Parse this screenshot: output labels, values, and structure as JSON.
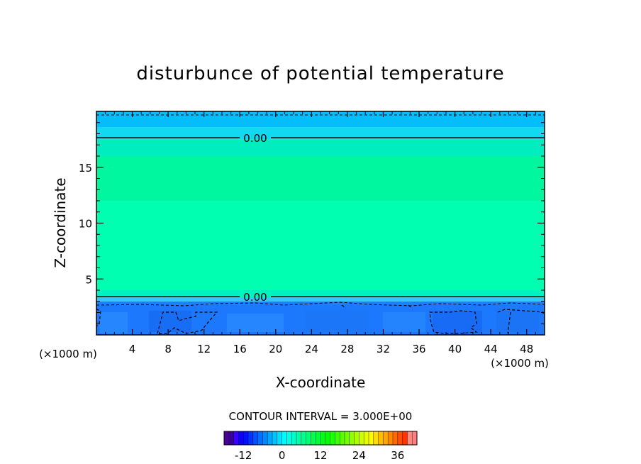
{
  "chart_data": {
    "type": "heatmap",
    "title": "disturbunce of potential temperature",
    "xlabel": "X-coordinate",
    "ylabel": "Z-coordinate",
    "x_unit": "(×1000 m)",
    "x_unit_right": "(×1000 m)",
    "xlim": [
      0,
      50
    ],
    "ylim": [
      0,
      20
    ],
    "x_ticks": [
      "4",
      "8",
      "12",
      "16",
      "20",
      "24",
      "28",
      "32",
      "36",
      "40",
      "44",
      "48"
    ],
    "y_ticks": [
      "5",
      "10",
      "15"
    ],
    "contour_labels": [
      {
        "text": "0.00",
        "x": 17.5,
        "z": 17.5
      },
      {
        "text": "0.00",
        "x": 17.5,
        "z": 3.5
      }
    ],
    "contour_interval_text": "CONTOUR INTERVAL = 3.000E+00",
    "colorbar": {
      "min": -18,
      "max": 42,
      "tick_labels": [
        "-12",
        "0",
        "12",
        "24",
        "36"
      ],
      "tick_values": [
        -12,
        0,
        12,
        24,
        36
      ]
    },
    "bands": [
      {
        "z0": 0.0,
        "z1": 3.0,
        "value": -4,
        "color": "#1e7fff"
      },
      {
        "z0": 3.0,
        "z1": 3.3,
        "value": -1,
        "color": "#2fc8ff"
      },
      {
        "z0": 3.3,
        "z1": 4.0,
        "value": 1,
        "color": "#00f2c0"
      },
      {
        "z0": 4.0,
        "z1": 12.0,
        "value": 2,
        "color": "#00ffb0"
      },
      {
        "z0": 12.0,
        "z1": 16.0,
        "value": 2.3,
        "color": "#00f79f"
      },
      {
        "z0": 16.0,
        "z1": 17.5,
        "value": 1,
        "color": "#00eebf"
      },
      {
        "z0": 17.5,
        "z1": 18.6,
        "value": -1,
        "color": "#12d8f0"
      },
      {
        "z0": 18.6,
        "z1": 20.0,
        "value": -3,
        "color": "#05bdfb"
      }
    ]
  }
}
